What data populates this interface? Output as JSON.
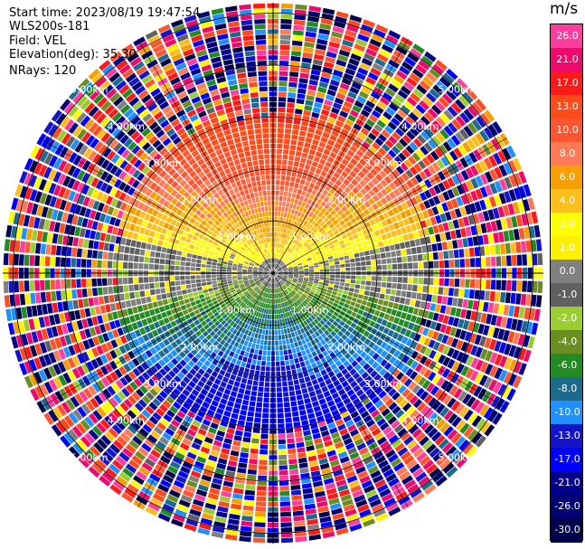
{
  "header": {
    "start_time": "Start time: 2023/08/19 19:47:54",
    "instrument": "WLS200s-181",
    "field": "Field: VEL",
    "elevation": "Elevation(deg): 35.30",
    "nrays": "NRays: 120"
  },
  "colorbar": {
    "unit": "m/s",
    "levels": [
      {
        "label": "26.0",
        "color": "#ff3d9e"
      },
      {
        "label": "21.0",
        "color": "#ee0a6a"
      },
      {
        "label": "17.0",
        "color": "#ff1a1a"
      },
      {
        "label": "13.0",
        "color": "#ff4a1a"
      },
      {
        "label": "10.0",
        "color": "#ff5530"
      },
      {
        "label": "8.0",
        "color": "#ff7a55"
      },
      {
        "label": "6.0",
        "color": "#f5a000"
      },
      {
        "label": "4.0",
        "color": "#ffbf1a"
      },
      {
        "label": "2.0",
        "color": "#ffff00"
      },
      {
        "label": "1.0",
        "color": "#fff000"
      },
      {
        "label": "0.0",
        "color": "#808080"
      },
      {
        "label": "-1.0",
        "color": "#606060"
      },
      {
        "label": "-2.0",
        "color": "#9acd32"
      },
      {
        "label": "-4.0",
        "color": "#6b8e23"
      },
      {
        "label": "-6.0",
        "color": "#228b22"
      },
      {
        "label": "-8.0",
        "color": "#1c6b8e"
      },
      {
        "label": "-10.0",
        "color": "#1e90ff"
      },
      {
        "label": "-13.0",
        "color": "#1414c8"
      },
      {
        "label": "-17.0",
        "color": "#0000ff"
      },
      {
        "label": "-21.0",
        "color": "#00008b"
      },
      {
        "label": "-26.0",
        "color": "#000070"
      },
      {
        "label": "-30.0",
        "color": "#00004a"
      }
    ]
  },
  "chart_data": {
    "type": "heatmap",
    "projection": "polar PPI",
    "field": "VEL",
    "units": "m/s",
    "n_rays": 120,
    "range_rings_km": [
      1.0,
      2.0,
      3.0,
      4.0,
      5.0
    ],
    "ring_labels": [
      "1.00km",
      "2.00km",
      "3.00km",
      "4.00km",
      "5.00km"
    ],
    "spoke_count": 12,
    "max_range_km": 5.2,
    "pattern": {
      "north_sector": "positive velocities 2 to 17 m/s (yellow/orange/red)",
      "south_sector": "negative velocities -1 to -21 m/s (green/blue)",
      "outer_ranges": "noisy random velocities beyond ~3 km"
    }
  }
}
